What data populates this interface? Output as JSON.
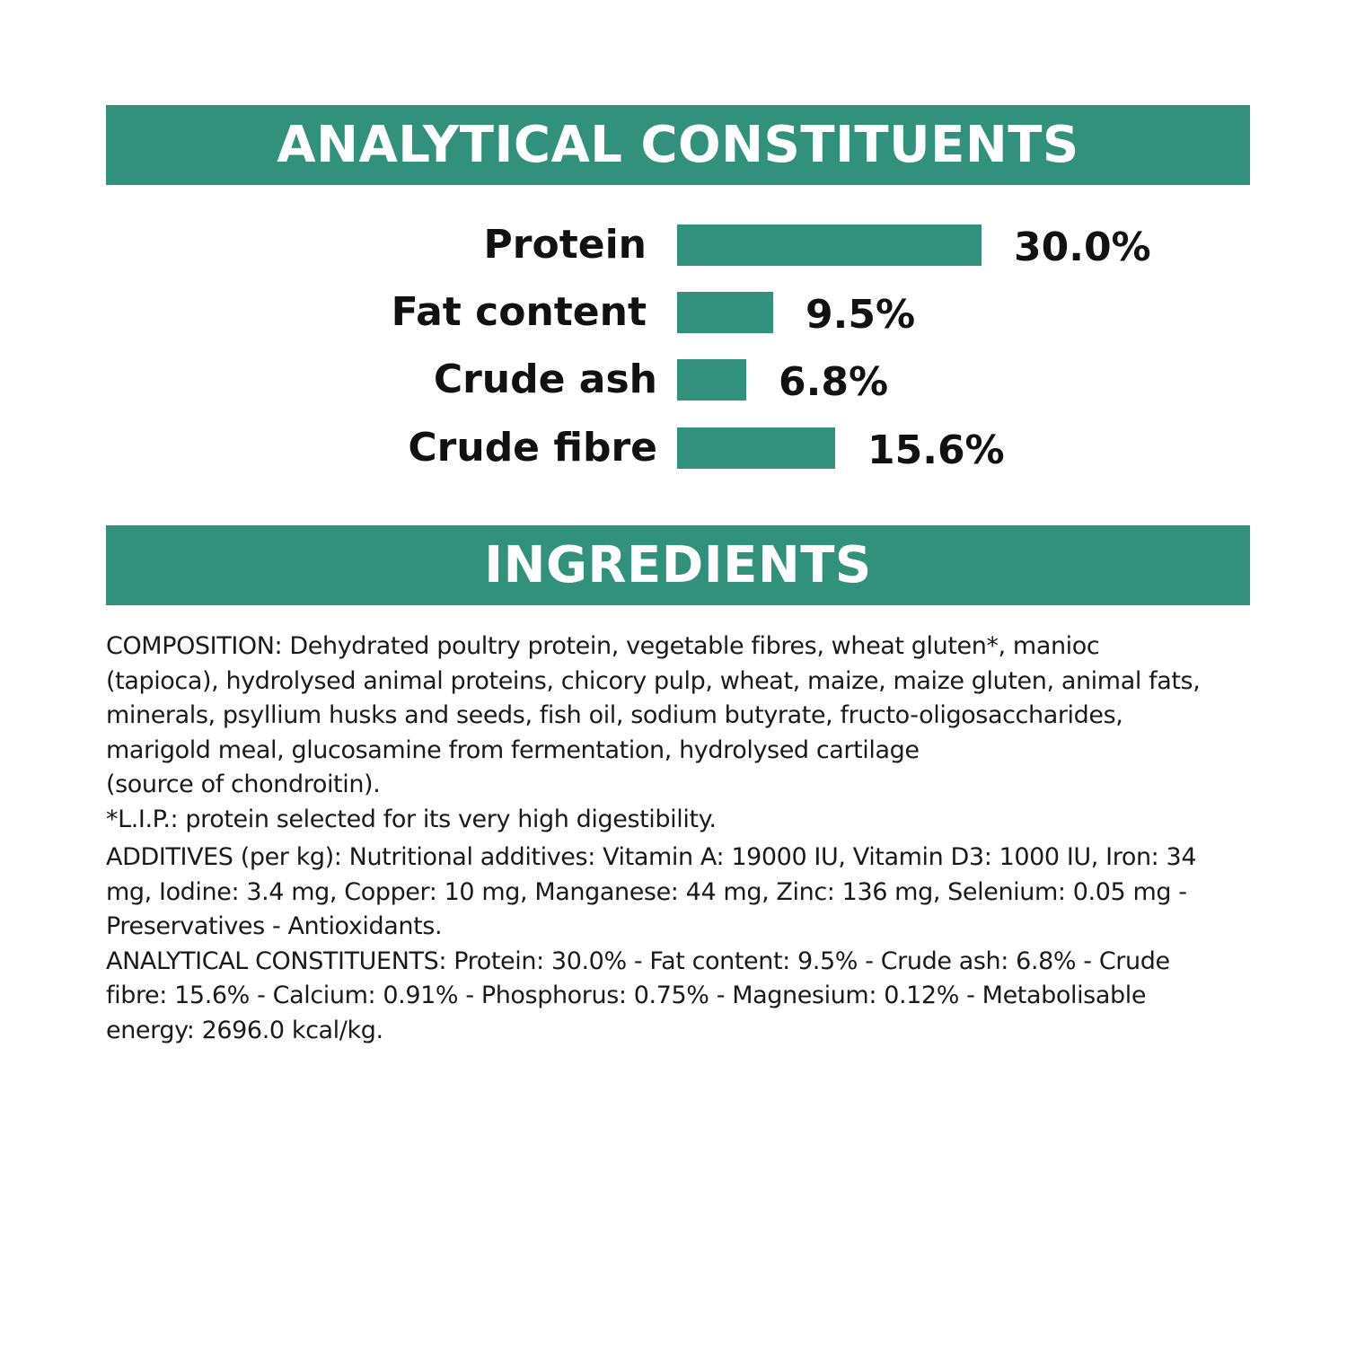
{
  "banners": {
    "analytical": "ANALYTICAL CONSTITUENTS",
    "ingredients": "INGREDIENTS"
  },
  "colors": {
    "accent": "#32917a",
    "text": "#111111",
    "background": "#ffffff"
  },
  "chart_data": {
    "type": "bar",
    "orientation": "horizontal",
    "categories": [
      "Protein",
      "Fat content",
      "Crude ash",
      "Crude fibre"
    ],
    "values": [
      30.0,
      9.5,
      6.8,
      15.6
    ],
    "value_labels": [
      "30.0%",
      "9.5%",
      "6.8%",
      "15.6%"
    ],
    "unit": "%",
    "title": "ANALYTICAL CONSTITUENTS",
    "xlabel": "",
    "ylabel": "",
    "grid": false
  },
  "ingredients": {
    "lines": [
      "COMPOSITION: Dehydrated poultry protein, vegetable fibres, wheat gluten*, manioc",
      "(tapioca), hydrolysed animal proteins, chicory pulp, wheat, maize, maize gluten, animal fats,",
      "minerals, psyllium husks and seeds, fish oil, sodium butyrate, fructo-oligosaccharides,",
      "marigold meal, glucosamine from fermentation, hydrolysed cartilage",
      "(source of chondroitin).",
      "*L.I.P.: protein selected for its very high digestibility.",
      "ADDITIVES (per kg): Nutritional additives: Vitamin A: 19000 IU, Vitamin D3: 1000 IU, Iron: 34",
      "mg, Iodine: 3.4 mg, Copper: 10 mg, Manganese: 44 mg, Zinc: 136 mg, Selenium: 0.05 mg -",
      "Preservatives - Antioxidants.",
      "ANALYTICAL CONSTITUENTS: Protein: 30.0% - Fat content: 9.5% - Crude ash: 6.8% - Crude",
      "fibre: 15.6% - Calcium: 0.91% - Phosphorus: 0.75% - Magnesium: 0.12% - Metabolisable",
      "energy: 2696.0 kcal/kg."
    ]
  }
}
